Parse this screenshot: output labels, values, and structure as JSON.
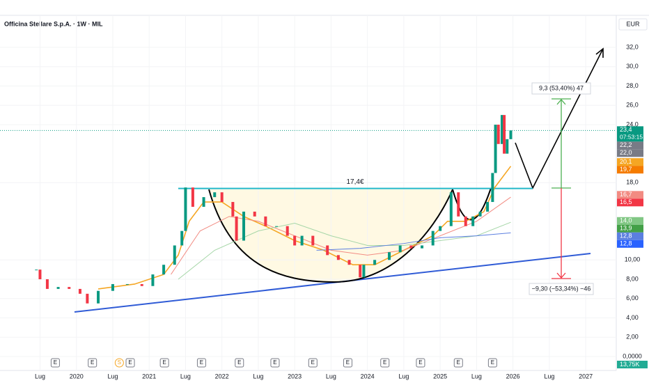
{
  "chart_data": {
    "type": "candlestick",
    "title": "Officina Stellare S.p.A. · 1W · MIL",
    "currency": "EUR",
    "x": [
      2019.45,
      2019.5,
      2019.6,
      2019.75,
      2019.9,
      2020.05,
      2020.15,
      2020.3,
      2020.5,
      2020.7,
      2020.9,
      2021.05,
      2021.2,
      2021.35,
      2021.45,
      2021.5,
      2021.6,
      2021.75,
      2021.9,
      2022.0,
      2022.15,
      2022.2,
      2022.3,
      2022.45,
      2022.6,
      2022.75,
      2022.9,
      2023.0,
      2023.1,
      2023.25,
      2023.45,
      2023.6,
      2023.75,
      2023.9,
      2023.95,
      2024.1,
      2024.3,
      2024.45,
      2024.6,
      2024.75,
      2024.9,
      2025.0,
      2025.15,
      2025.25,
      2025.35,
      2025.45,
      2025.55,
      2025.65,
      2025.72,
      2025.76,
      2025.8,
      2025.85,
      2025.88,
      2025.92,
      2025.97
    ],
    "values": [
      9.0,
      8.0,
      7.0,
      7.2,
      7.0,
      6.5,
      5.5,
      6.8,
      7.5,
      7.5,
      7.3,
      8.5,
      9.5,
      11.5,
      13,
      17.5,
      15.5,
      16.5,
      17.0,
      16.0,
      14.5,
      12.0,
      15.0,
      14.5,
      13.5,
      13.5,
      12.5,
      11.5,
      12.5,
      11.5,
      10.5,
      10.0,
      9.5,
      8.2,
      9.5,
      10.0,
      10.8,
      11.5,
      11.2,
      11.5,
      13.0,
      13.5,
      17.0,
      14.5,
      13.5,
      14.5,
      15.0,
      16.0,
      19.0,
      24.0,
      22.0,
      25.0,
      21.0,
      22.5,
      23.4
    ],
    "up_color": "#089981",
    "down_color": "#f23645",
    "moving_averages": [
      {
        "color": "#f5a623",
        "x": [
          2020.3,
          2020.8,
          2021.2,
          2021.4,
          2021.55,
          2021.75,
          2022.0,
          2022.3,
          2022.6,
          2023.0,
          2023.4,
          2023.8,
          2024.1,
          2024.5,
          2024.9,
          2025.1,
          2025.35,
          2025.6,
          2025.75,
          2025.97
        ],
        "values": [
          7.0,
          7.5,
          8.5,
          10.5,
          14,
          16,
          16,
          14.5,
          13.5,
          12,
          11,
          9.5,
          9.5,
          11,
          12.5,
          14,
          14,
          15,
          17.5,
          19.7
        ]
      },
      {
        "color": "#f28b82",
        "x": [
          2021.3,
          2021.7,
          2022.1,
          2022.5,
          2023.0,
          2023.5,
          2024.0,
          2024.5,
          2025.0,
          2025.5,
          2025.97
        ],
        "values": [
          8.5,
          13,
          14.5,
          14,
          12.5,
          11,
          10.5,
          11,
          12.5,
          14,
          16.5
        ]
      },
      {
        "color": "#a5d6a7",
        "x": [
          2021.4,
          2021.9,
          2022.5,
          2023.0,
          2023.5,
          2024.0,
          2024.5,
          2025.0,
          2025.5,
          2025.97
        ],
        "values": [
          8,
          11,
          13,
          13.8,
          12.5,
          11.5,
          11.5,
          12,
          12.5,
          13.9
        ]
      },
      {
        "color": "#5b7fe0",
        "x": [
          2023.3,
          2023.9,
          2024.5,
          2025.0,
          2025.5,
          2025.97
        ],
        "values": [
          11,
          11.2,
          11.7,
          12.3,
          12.5,
          12.8
        ]
      }
    ],
    "resistance": {
      "value": 17.4,
      "label": "17,4€",
      "color": "#22b8c8"
    },
    "target_label": "9,3 (53,40%) 47",
    "stop_label": "−9,30 (−53,34%) −46",
    "xlim": [
      2018.95,
      2027.42
    ],
    "xticks": [
      {
        "value": 2019.5,
        "label": "Lug"
      },
      2020,
      {
        "value": 2020.5,
        "label": "Lug"
      },
      2021,
      {
        "value": 2021.5,
        "label": "Lug"
      },
      2022,
      {
        "value": 2022.5,
        "label": "Lug"
      },
      2023,
      {
        "value": 2023.5,
        "label": "Lug"
      },
      2024,
      {
        "value": 2024.5,
        "label": "Lug"
      },
      2025,
      {
        "value": 2025.5,
        "label": "Lug"
      },
      2026,
      {
        "value": 2026.5,
        "label": "Lug"
      },
      2027
    ],
    "ylim": [
      -1.44,
      33.3
    ],
    "yticks": [
      {
        "value": 32,
        "label": "32,0"
      },
      {
        "value": 30,
        "label": "30,0"
      },
      {
        "value": 28,
        "label": "28,0"
      },
      {
        "value": 26,
        "label": "26,0"
      },
      {
        "value": 24,
        "label": "24,0"
      },
      {
        "value": 18,
        "label": "18,0"
      },
      {
        "value": 10,
        "label": "10,00"
      },
      {
        "value": 8,
        "label": "8,00"
      },
      {
        "value": 6,
        "label": "6,00"
      },
      {
        "value": 4,
        "label": "4,00"
      },
      {
        "value": 2,
        "label": "2,00"
      },
      {
        "value": 0,
        "label": "0,0000"
      }
    ],
    "price_labels": [
      {
        "value": 23.4,
        "label": "23,4",
        "color": "#089981"
      },
      {
        "value": 22.2,
        "label": "22,2",
        "color": "#787b86"
      },
      {
        "value": 22.0,
        "label": "22,0",
        "color": "#787b86"
      },
      {
        "value": 20.1,
        "label": "20,1",
        "color": "#f5a623"
      },
      {
        "value": 19.7,
        "label": "19,7",
        "color": "#f57c00"
      },
      {
        "value": 16.7,
        "label": "16,7",
        "color": "#f28b82"
      },
      {
        "value": 16.5,
        "label": "16,5",
        "color": "#f23645"
      },
      {
        "value": 14.0,
        "label": "14,0",
        "color": "#81c784"
      },
      {
        "value": 13.9,
        "label": "13,9",
        "color": "#43a047"
      },
      {
        "value": 12.8,
        "label": "12,8",
        "color": "#5b7fe0"
      },
      {
        "value": 12.8,
        "label": "12,8",
        "color": "#2962ff"
      }
    ],
    "countdown": "07:53:15",
    "volume_label": "13,75K",
    "events": [
      {
        "x": 2019.71,
        "label": "E"
      },
      {
        "x": 2020.22,
        "label": "E"
      },
      {
        "x": 2020.59,
        "label": "S"
      },
      {
        "x": 2020.74,
        "label": "E"
      },
      {
        "x": 2021.21,
        "label": "E"
      },
      {
        "x": 2021.72,
        "label": "E"
      },
      {
        "x": 2022.24,
        "label": "E"
      },
      {
        "x": 2022.73,
        "label": "E"
      },
      {
        "x": 2023.25,
        "label": "E"
      },
      {
        "x": 2023.73,
        "label": "E"
      },
      {
        "x": 2024.24,
        "label": "E"
      },
      {
        "x": 2024.73,
        "label": "E"
      },
      {
        "x": 2025.25,
        "label": "E"
      },
      {
        "x": 2025.72,
        "label": "E"
      }
    ]
  }
}
